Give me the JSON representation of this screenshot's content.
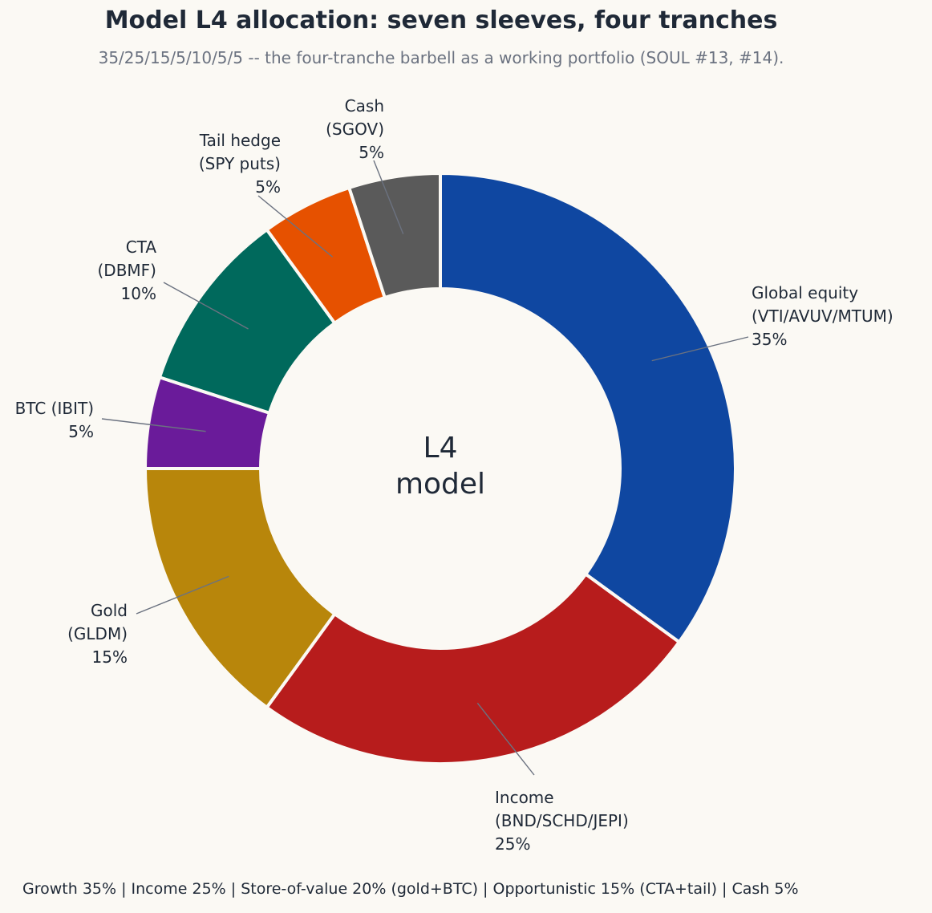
{
  "title": "Model L4 allocation: seven sleeves, four tranches",
  "subtitle": "35/25/15/5/10/5/5 -- the four-tranche barbell as a working portfolio (SOUL #13, #14).",
  "center_label": [
    "L4",
    "model"
  ],
  "footer": "Growth 35% | Income 25% | Store-of-value 20% (gold+BTC) | Opportunistic 15% (CTA+tail) | Cash 5%",
  "chart_data": {
    "type": "pie",
    "donut": true,
    "start": "12 o'clock",
    "direction": "clockwise",
    "slices": [
      {
        "label": [
          "Global equity",
          "(VTI/AVUV/MTUM)",
          "35%"
        ],
        "value": 35,
        "color": "#0f47a1"
      },
      {
        "label": [
          "Income",
          "(BND/SCHD/JEPI)",
          "25%"
        ],
        "value": 25,
        "color": "#b71c1c"
      },
      {
        "label": [
          "Gold",
          "(GLDM)",
          "15%"
        ],
        "value": 15,
        "color": "#b8860b"
      },
      {
        "label": [
          "BTC (IBIT)",
          "5%"
        ],
        "value": 5,
        "color": "#6a1b9a"
      },
      {
        "label": [
          "CTA",
          "(DBMF)",
          "10%"
        ],
        "value": 10,
        "color": "#00695c"
      },
      {
        "label": [
          "Tail hedge",
          "(SPY puts)",
          "5%"
        ],
        "value": 5,
        "color": "#e65100"
      },
      {
        "label": [
          "Cash",
          "(SGOV)",
          "5%"
        ],
        "value": 5,
        "color": "#5a5a5a"
      }
    ]
  }
}
